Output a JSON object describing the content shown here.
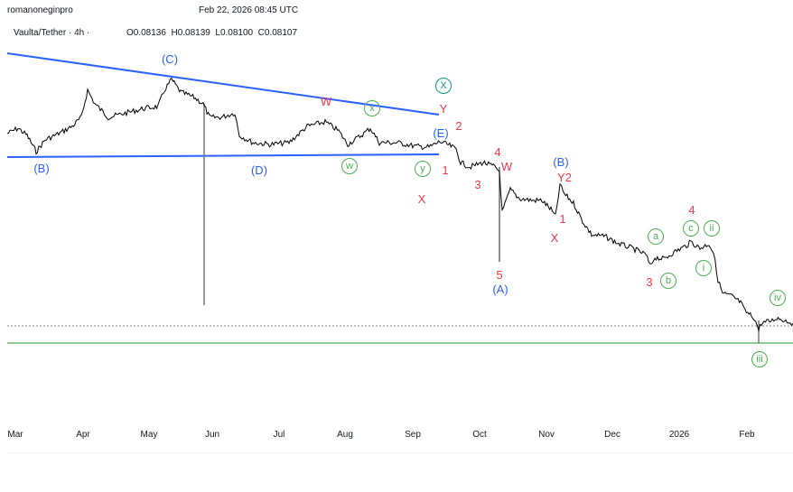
{
  "header": {
    "author": "romanoneginpro",
    "datetime": "Feb 22, 2026 08:45 UTC",
    "symbol": "Vaulta/Tether · 4h ·",
    "ohlc": "O0.08136  H0.08139  L0.08100  C0.08107"
  },
  "colors": {
    "red": "#f23645",
    "blue": "#2962ff",
    "green": "#4caf50",
    "teal": "#089981",
    "price": "#000000"
  },
  "chart_data": {
    "type": "line",
    "title": "Vaulta/Tether 4h",
    "x_ticks": [
      "Mar",
      "Apr",
      "May",
      "Jun",
      "Jul",
      "Aug",
      "Sep",
      "Oct",
      "Nov",
      "Dec",
      "2026",
      "Feb"
    ],
    "open": 0.08136,
    "high": 0.08139,
    "low": 0.081,
    "close": 0.08107,
    "labels": {
      "blue": [
        "(C)",
        "(B)",
        "(D)",
        "(E)",
        "(B)",
        "(A)"
      ],
      "red": [
        "W",
        "Y",
        "2",
        "1",
        "X",
        "4",
        "W",
        "3",
        "5",
        "Y2",
        "1",
        "X",
        "3",
        "4"
      ],
      "green_circled": [
        "x",
        "w",
        "y",
        "a",
        "b",
        "c",
        "ii",
        "i",
        "iv",
        "iii"
      ],
      "teal_circled": [
        "X"
      ]
    }
  }
}
